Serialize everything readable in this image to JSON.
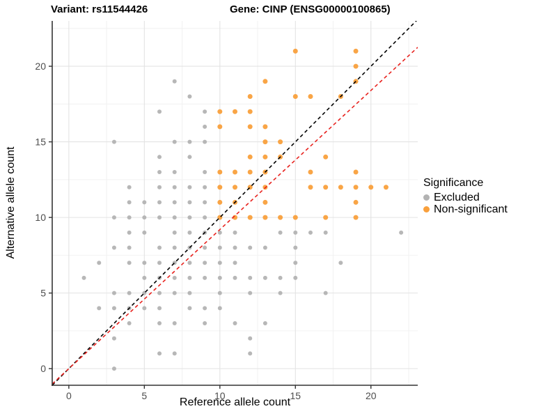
{
  "header": {
    "variant_title": "Variant: rs11544426",
    "gene_title": "Gene: CINP (ENSG00000100865)"
  },
  "axes": {
    "x_label": "Reference allele count",
    "y_label": "Alternative allele count"
  },
  "legend": {
    "title": "Significance",
    "items": [
      {
        "label": "Excluded",
        "color": "#b3b3b3"
      },
      {
        "label": "Non-significant",
        "color": "#f9a03c"
      }
    ]
  },
  "colors": {
    "background": "#ffffff",
    "grid_major": "#e3e3e3",
    "grid_minor": "#f2f2f2",
    "axis_line": "#333333",
    "tick_label": "#4d4d4d",
    "point_excluded": "#b3b3b3",
    "point_non_significant": "#f9a03c",
    "identity_line": "#000000",
    "fit_line": "#e8211d"
  },
  "chart_data": {
    "type": "scatter",
    "title": "Variant: rs11544426 — Gene: CINP (ENSG00000100865)",
    "xlabel": "Reference allele count",
    "ylabel": "Alternative allele count",
    "xlim": [
      -1.1,
      23.1
    ],
    "ylim": [
      -1.1,
      23.0
    ],
    "x_major_ticks": [
      0,
      5,
      10,
      15,
      20
    ],
    "y_major_ticks": [
      0,
      5,
      10,
      15,
      20
    ],
    "x_minor_ticks": [
      2.5,
      7.5,
      12.5,
      17.5,
      22.5
    ],
    "y_minor_ticks": [
      2.5,
      7.5,
      12.5,
      17.5,
      22.5
    ],
    "grid": true,
    "legend_position": "right",
    "series": [
      {
        "name": "Excluded",
        "color": "#b3b3b3",
        "point_radius": 3,
        "points": [
          [
            7,
            19
          ],
          [
            8,
            18
          ],
          [
            6,
            17
          ],
          [
            9,
            17
          ],
          [
            9,
            16
          ],
          [
            3,
            15
          ],
          [
            7,
            15
          ],
          [
            8,
            15
          ],
          [
            9,
            15
          ],
          [
            6,
            14
          ],
          [
            8,
            14
          ],
          [
            6,
            13
          ],
          [
            7,
            13
          ],
          [
            9,
            13
          ],
          [
            4,
            12
          ],
          [
            6,
            12
          ],
          [
            7,
            12
          ],
          [
            8,
            12
          ],
          [
            9,
            12
          ],
          [
            4,
            11
          ],
          [
            5,
            11
          ],
          [
            6,
            11
          ],
          [
            7,
            11
          ],
          [
            8,
            11
          ],
          [
            9,
            11
          ],
          [
            3,
            10
          ],
          [
            4,
            10
          ],
          [
            5,
            10
          ],
          [
            6,
            10
          ],
          [
            7,
            10
          ],
          [
            8,
            10
          ],
          [
            9,
            10
          ],
          [
            4,
            9
          ],
          [
            5,
            9
          ],
          [
            7,
            9
          ],
          [
            8,
            9
          ],
          [
            9,
            9
          ],
          [
            10,
            9
          ],
          [
            11,
            9
          ],
          [
            14,
            9
          ],
          [
            15,
            9
          ],
          [
            16,
            9
          ],
          [
            17,
            9
          ],
          [
            22,
            9
          ],
          [
            3,
            8
          ],
          [
            4,
            8
          ],
          [
            6,
            8
          ],
          [
            7,
            8
          ],
          [
            8,
            8
          ],
          [
            9,
            8
          ],
          [
            10,
            8
          ],
          [
            11,
            8
          ],
          [
            12,
            8
          ],
          [
            13,
            8
          ],
          [
            15,
            8
          ],
          [
            2,
            7
          ],
          [
            4,
            7
          ],
          [
            5,
            7
          ],
          [
            6,
            7
          ],
          [
            7,
            7
          ],
          [
            8,
            7
          ],
          [
            9,
            7
          ],
          [
            10,
            7
          ],
          [
            11,
            7
          ],
          [
            15,
            7
          ],
          [
            18,
            7
          ],
          [
            1,
            6
          ],
          [
            5,
            6
          ],
          [
            6,
            6
          ],
          [
            7,
            6
          ],
          [
            8,
            6
          ],
          [
            9,
            6
          ],
          [
            10,
            6
          ],
          [
            11,
            6
          ],
          [
            12,
            6
          ],
          [
            13,
            6
          ],
          [
            14,
            6
          ],
          [
            15,
            6
          ],
          [
            3,
            5
          ],
          [
            4,
            5
          ],
          [
            5,
            5
          ],
          [
            6,
            5
          ],
          [
            7,
            5
          ],
          [
            8,
            5
          ],
          [
            10,
            5
          ],
          [
            12,
            5
          ],
          [
            14,
            5
          ],
          [
            17,
            5
          ],
          [
            2,
            4
          ],
          [
            3,
            4
          ],
          [
            4,
            4
          ],
          [
            5,
            4
          ],
          [
            6,
            4
          ],
          [
            8,
            4
          ],
          [
            9,
            4
          ],
          [
            10,
            4
          ],
          [
            4,
            3
          ],
          [
            6,
            3
          ],
          [
            7,
            3
          ],
          [
            9,
            3
          ],
          [
            11,
            3
          ],
          [
            13,
            3
          ],
          [
            3,
            2
          ],
          [
            12,
            2
          ],
          [
            6,
            1
          ],
          [
            7,
            1
          ],
          [
            12,
            1
          ],
          [
            3,
            0
          ]
        ]
      },
      {
        "name": "Non-significant",
        "color": "#f9a03c",
        "point_radius": 3.5,
        "points": [
          [
            15,
            21
          ],
          [
            19,
            21
          ],
          [
            19,
            20
          ],
          [
            13,
            19
          ],
          [
            19,
            19
          ],
          [
            12,
            18
          ],
          [
            15,
            18
          ],
          [
            16,
            18
          ],
          [
            18,
            18
          ],
          [
            10,
            17
          ],
          [
            11,
            17
          ],
          [
            12,
            17
          ],
          [
            10,
            16
          ],
          [
            12,
            16
          ],
          [
            13,
            16
          ],
          [
            13,
            15
          ],
          [
            14,
            15
          ],
          [
            12,
            14
          ],
          [
            13,
            14
          ],
          [
            14,
            14
          ],
          [
            17,
            14
          ],
          [
            10,
            13
          ],
          [
            11,
            13
          ],
          [
            12,
            13
          ],
          [
            13,
            13
          ],
          [
            16,
            13
          ],
          [
            19,
            13
          ],
          [
            10,
            12
          ],
          [
            11,
            12
          ],
          [
            12,
            12
          ],
          [
            13,
            12
          ],
          [
            16,
            12
          ],
          [
            17,
            12
          ],
          [
            18,
            12
          ],
          [
            19,
            12
          ],
          [
            20,
            12
          ],
          [
            21,
            12
          ],
          [
            10,
            11
          ],
          [
            11,
            11
          ],
          [
            13,
            11
          ],
          [
            19,
            11
          ],
          [
            10,
            10
          ],
          [
            11,
            10
          ],
          [
            12,
            10
          ],
          [
            13,
            10
          ],
          [
            14,
            10
          ],
          [
            15,
            10
          ],
          [
            17,
            10
          ],
          [
            19,
            10
          ]
        ]
      }
    ],
    "reference_lines": [
      {
        "name": "identity",
        "slope": 1.0,
        "intercept": 0,
        "color": "#000000",
        "style": "dashed"
      },
      {
        "name": "expected-ratio",
        "slope": 0.92,
        "intercept": 0,
        "color": "#e8211d",
        "style": "dashed"
      }
    ]
  }
}
